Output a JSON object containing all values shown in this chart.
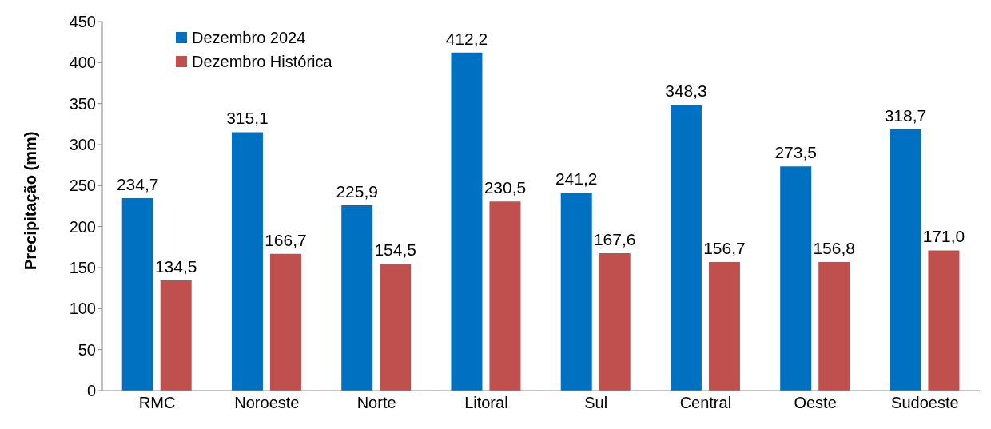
{
  "chart_data": {
    "type": "bar",
    "ylabel": "Precipitação (mm)",
    "categories": [
      "RMC",
      "Noroeste",
      "Norte",
      "Litoral",
      "Sul",
      "Central",
      "Oeste",
      "Sudoeste"
    ],
    "series": [
      {
        "name": "Dezembro 2024",
        "color": "#0070c0",
        "values": [
          234.7,
          315.1,
          225.9,
          412.2,
          241.2,
          348.3,
          273.5,
          318.7
        ],
        "value_labels": [
          "234,7",
          "315,1",
          "225,9",
          "412,2",
          "241,2",
          "348,3",
          "273,5",
          "318,7"
        ]
      },
      {
        "name": "Dezembro Histórica",
        "color": "#c0504d",
        "values": [
          134.5,
          166.7,
          154.5,
          230.5,
          167.6,
          156.7,
          156.8,
          171.0
        ],
        "value_labels": [
          "134,5",
          "166,7",
          "154,5",
          "230,5",
          "167,6",
          "156,7",
          "156,8",
          "171,0"
        ]
      }
    ],
    "ylim": [
      0,
      450
    ],
    "yticks": [
      0,
      50,
      100,
      150,
      200,
      250,
      300,
      350,
      400,
      450
    ],
    "grid": false,
    "legend": "top left"
  }
}
